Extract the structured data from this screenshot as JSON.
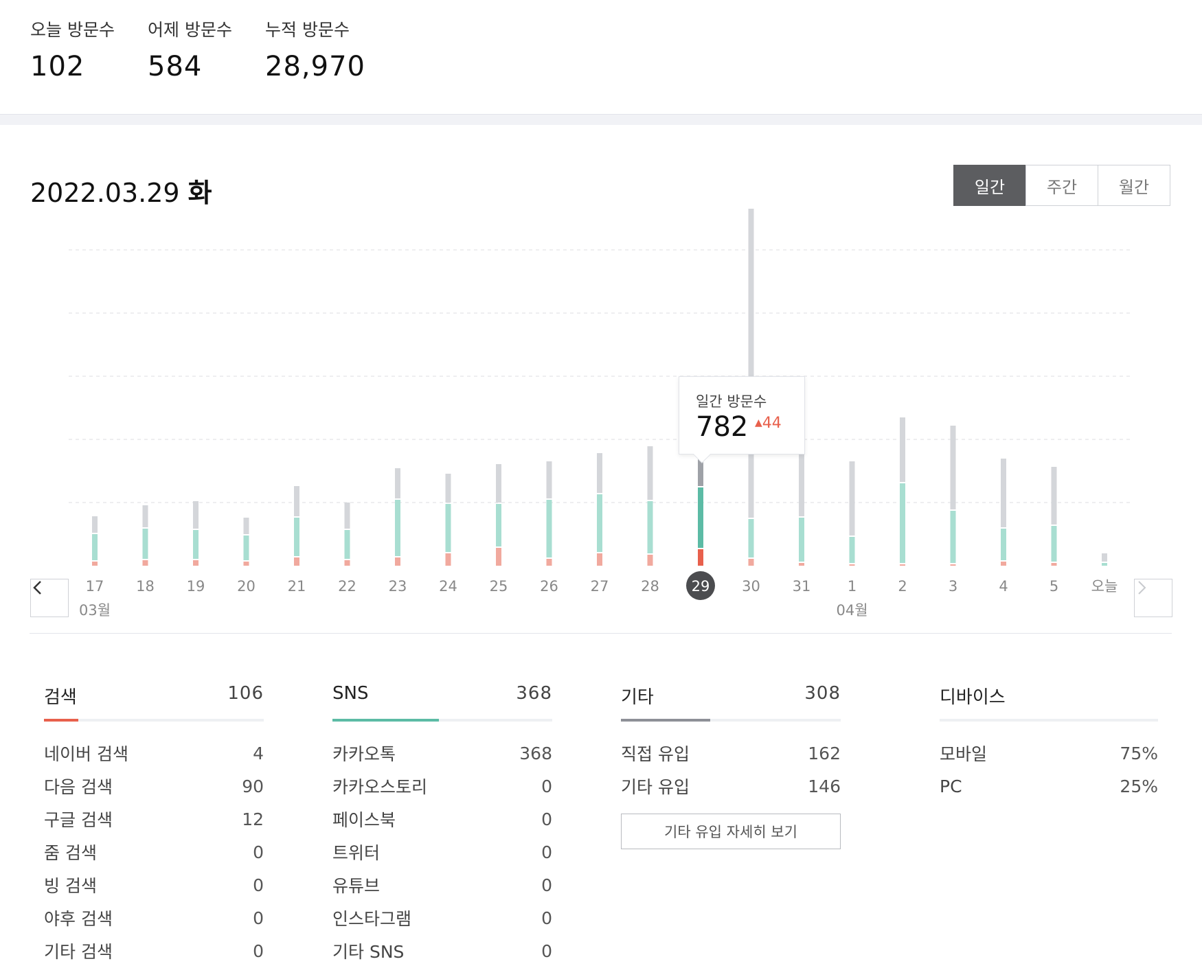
{
  "summary": [
    {
      "label": "오늘 방문수",
      "value": "102"
    },
    {
      "label": "어제 방문수",
      "value": "584"
    },
    {
      "label": "누적 방문수",
      "value": "28,970"
    }
  ],
  "date_title": {
    "date": "2022.03.29",
    "weekday": "화"
  },
  "period_tabs": [
    {
      "label": "일간",
      "active": true
    },
    {
      "label": "주간",
      "active": false
    },
    {
      "label": "월간",
      "active": false
    }
  ],
  "chart_data": {
    "type": "bar",
    "categories": [
      "17",
      "18",
      "19",
      "20",
      "21",
      "22",
      "23",
      "24",
      "25",
      "26",
      "27",
      "28",
      "29",
      "30",
      "31",
      "1",
      "2",
      "3",
      "4",
      "5",
      "오늘"
    ],
    "month_labels": [
      {
        "label": "03월",
        "at": "17"
      },
      {
        "label": "04월",
        "at": "1"
      }
    ],
    "selected": "29",
    "series": [
      {
        "color": "#f1a99e",
        "selected_color": "#e8604c",
        "values": [
          6,
          8,
          8,
          6,
          12,
          8,
          12,
          18,
          26,
          10,
          18,
          16,
          24,
          10,
          4,
          2,
          2,
          2,
          6,
          4,
          0
        ]
      },
      {
        "color": "#a8ded1",
        "selected_color": "#5cbba5",
        "values": [
          38,
          44,
          42,
          36,
          56,
          42,
          82,
          70,
          62,
          84,
          84,
          76,
          88,
          56,
          64,
          38,
          116,
          76,
          46,
          52,
          4
        ]
      },
      {
        "color": "#d4d6da",
        "selected_color": "#9ea1a7",
        "values": [
          24,
          32,
          40,
          24,
          44,
          38,
          44,
          42,
          56,
          54,
          58,
          78,
          70,
          450,
          132,
          108,
          94,
          122,
          100,
          84,
          12
        ]
      }
    ],
    "gridlines": 5,
    "tooltip": {
      "label": "일간 방문수",
      "value": "782",
      "delta": "44",
      "delta_dir": "up"
    }
  },
  "columns": [
    {
      "title": "검색",
      "total": "106",
      "accent": "#e8604c",
      "fill_ratio": 0.155,
      "rows": [
        {
          "label": "네이버 검색",
          "value": "4"
        },
        {
          "label": "다음 검색",
          "value": "90"
        },
        {
          "label": "구글 검색",
          "value": "12"
        },
        {
          "label": "줌 검색",
          "value": "0"
        },
        {
          "label": "빙 검색",
          "value": "0"
        },
        {
          "label": "야후 검색",
          "value": "0"
        },
        {
          "label": "기타 검색",
          "value": "0"
        }
      ]
    },
    {
      "title": "SNS",
      "total": "368",
      "accent": "#5cbba5",
      "fill_ratio": 0.485,
      "rows": [
        {
          "label": "카카오톡",
          "value": "368"
        },
        {
          "label": "카카오스토리",
          "value": "0"
        },
        {
          "label": "페이스북",
          "value": "0"
        },
        {
          "label": "트위터",
          "value": "0"
        },
        {
          "label": "유튜브",
          "value": "0"
        },
        {
          "label": "인스타그램",
          "value": "0"
        },
        {
          "label": "기타 SNS",
          "value": "0"
        }
      ]
    },
    {
      "title": "기타",
      "total": "308",
      "accent": "#8e9097",
      "fill_ratio": 0.405,
      "rows": [
        {
          "label": "직접 유입",
          "value": "162"
        },
        {
          "label": "기타 유입",
          "value": "146"
        }
      ],
      "button": "기타 유입 자세히 보기"
    },
    {
      "title": "디바이스",
      "total": "",
      "accent": "#eef0f3",
      "fill_ratio": 0,
      "rows": [
        {
          "label": "모바일",
          "value": "75%"
        },
        {
          "label": "PC",
          "value": "25%"
        }
      ]
    }
  ]
}
